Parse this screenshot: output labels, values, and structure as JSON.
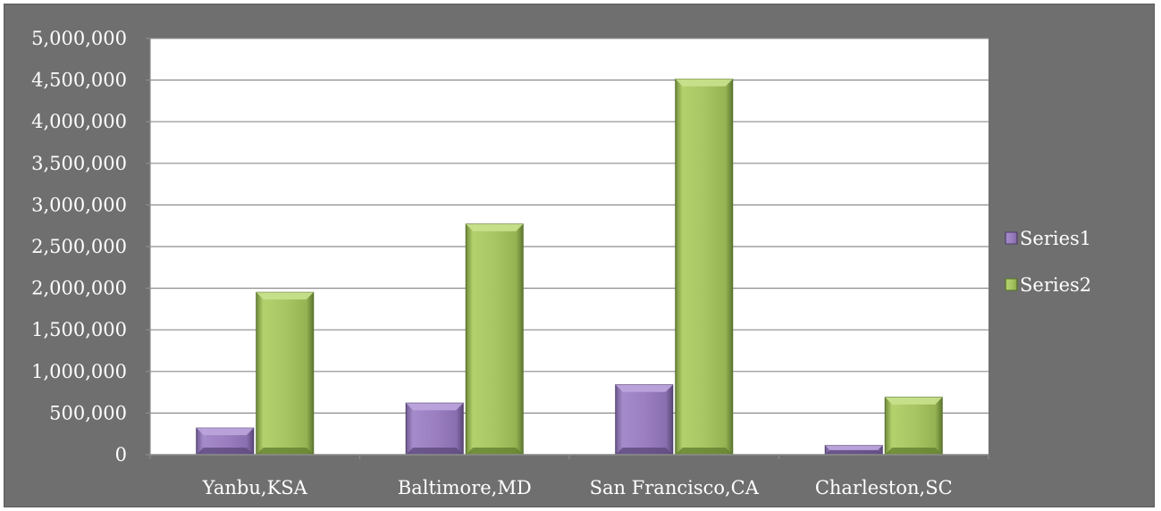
{
  "chart_data": {
    "type": "bar",
    "categories": [
      "Yanbu,KSA",
      "Baltimore,MD",
      "San Francisco,CA",
      "Charleston,SC"
    ],
    "series": [
      {
        "name": "Series1",
        "values": [
          320000,
          620000,
          840000,
          110000
        ],
        "color": "#9b7fc0"
      },
      {
        "name": "Series2",
        "values": [
          1950000,
          2770000,
          4510000,
          690000
        ],
        "color": "#a8c663"
      }
    ],
    "ylim": [
      0,
      5000000
    ],
    "yticks": [
      0,
      500000,
      1000000,
      1500000,
      2000000,
      2500000,
      3000000,
      3500000,
      4000000,
      4500000,
      5000000
    ],
    "ytick_labels": [
      "0",
      "500,000",
      "1,000,000",
      "1,500,000",
      "2,000,000",
      "2,500,000",
      "3,000,000",
      "3,500,000",
      "4,000,000",
      "4,500,000",
      "5,000,000"
    ],
    "grid": true,
    "legend": "right",
    "background": "#6f6f6f",
    "plot_background": "#ffffff"
  }
}
